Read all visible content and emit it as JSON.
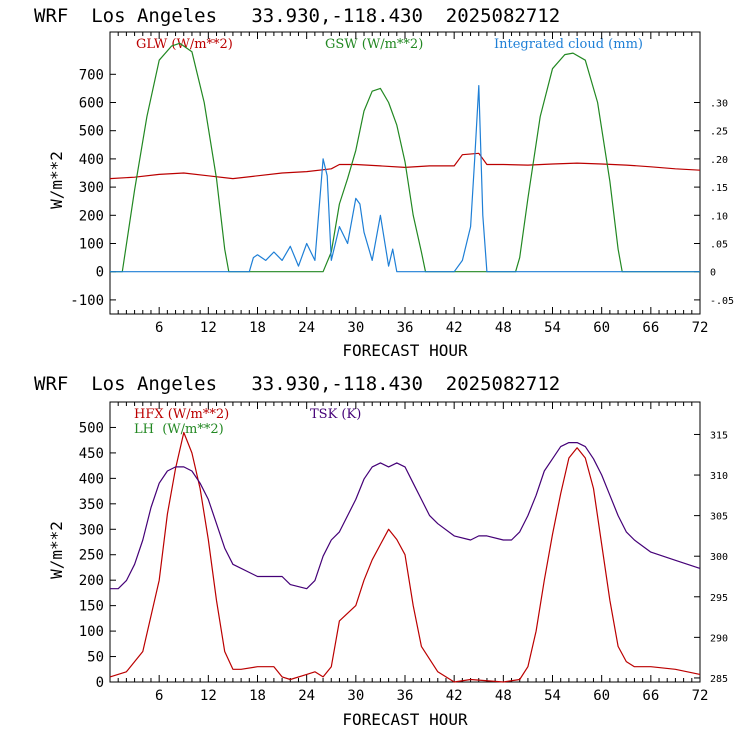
{
  "chart_data": [
    {
      "type": "line",
      "title": "WRF  Los Angeles   33.930,-118.430  2025082712",
      "xlabel": "FORECAST HOUR",
      "ylabel": "W/m**2",
      "xlim": [
        0,
        72
      ],
      "ylim": [
        -150,
        850
      ],
      "y2lim": [
        -0.075,
        0.425
      ],
      "x_ticks": [
        "6",
        "12",
        "18",
        "24",
        "30",
        "36",
        "42",
        "48",
        "54",
        "60",
        "66",
        "72"
      ],
      "y_ticks": [
        "-100",
        "0",
        "100",
        "200",
        "300",
        "400",
        "500",
        "600",
        "700"
      ],
      "y2_ticks": [
        "-.05",
        "0",
        ".05",
        ".10",
        ".15",
        ".20",
        ".25",
        ".30"
      ],
      "series": [
        {
          "name": "GLW (W/m**2)",
          "axis": "left",
          "color": "#bb0000",
          "x": [
            0,
            3,
            6,
            9,
            12,
            15,
            18,
            21,
            24,
            27,
            28,
            30,
            33,
            36,
            39,
            42,
            43,
            45,
            46,
            48,
            51,
            54,
            57,
            60,
            63,
            66,
            69,
            72
          ],
          "y": [
            330,
            335,
            345,
            350,
            340,
            330,
            340,
            350,
            355,
            365,
            380,
            380,
            375,
            370,
            375,
            375,
            415,
            420,
            380,
            380,
            378,
            382,
            385,
            382,
            378,
            372,
            365,
            360
          ]
        },
        {
          "name": "GSW (W/m**2)",
          "axis": "left",
          "color": "#228822",
          "x": [
            0,
            1.5,
            3,
            4.5,
            6,
            7.5,
            8.5,
            10,
            11.5,
            13,
            14,
            14.5,
            26,
            27,
            28,
            29,
            30,
            31,
            32,
            33,
            34,
            35,
            36,
            37,
            38,
            38.5,
            49.5,
            50,
            51,
            52.5,
            54,
            55.5,
            56.5,
            58,
            59.5,
            61,
            62,
            62.5,
            72
          ],
          "y": [
            0,
            0,
            290,
            550,
            750,
            800,
            810,
            780,
            600,
            330,
            80,
            0,
            0,
            70,
            240,
            330,
            430,
            570,
            640,
            650,
            600,
            520,
            390,
            200,
            70,
            0,
            0,
            50,
            260,
            550,
            720,
            770,
            775,
            750,
            600,
            320,
            80,
            0,
            0
          ]
        },
        {
          "name": "Integrated cloud (mm)",
          "axis": "right",
          "color": "#1e7fd6",
          "x": [
            0,
            17,
            17.5,
            18,
            19,
            20,
            21,
            22,
            23,
            24,
            25,
            26,
            26.5,
            27,
            28,
            29,
            30,
            30.5,
            31,
            32,
            33,
            34,
            34.5,
            35,
            36,
            42,
            43,
            44,
            44.5,
            45,
            45.5,
            46,
            47,
            72
          ],
          "y": [
            0,
            0,
            0.025,
            0.03,
            0.02,
            0.035,
            0.02,
            0.045,
            0.01,
            0.05,
            0.02,
            0.2,
            0.17,
            0.02,
            0.08,
            0.05,
            0.13,
            0.12,
            0.07,
            0.02,
            0.1,
            0.01,
            0.04,
            0.0,
            0,
            0,
            0.02,
            0.08,
            0.2,
            0.33,
            0.1,
            0.0,
            0,
            0
          ]
        }
      ]
    },
    {
      "type": "line",
      "title": "WRF  Los Angeles   33.930,-118.430  2025082712",
      "xlabel": "FORECAST HOUR",
      "ylabel": "W/m**2",
      "xlim": [
        0,
        72
      ],
      "ylim": [
        0,
        550
      ],
      "y2lim": [
        284.5,
        319
      ],
      "x_ticks": [
        "6",
        "12",
        "18",
        "24",
        "30",
        "36",
        "42",
        "48",
        "54",
        "60",
        "66",
        "72"
      ],
      "y_ticks": [
        "0",
        "50",
        "100",
        "150",
        "200",
        "250",
        "300",
        "350",
        "400",
        "450",
        "500"
      ],
      "y2_ticks": [
        "285",
        "290",
        "295",
        "300",
        "305",
        "310",
        "315"
      ],
      "series": [
        {
          "name": "HFX (W/m**2)",
          "axis": "left",
          "color": "#bb0000",
          "x": [
            0,
            2,
            4,
            6,
            7,
            8,
            9,
            10,
            11,
            12,
            13,
            14,
            15,
            16,
            18,
            20,
            21,
            22,
            24,
            25,
            26,
            27,
            28,
            30,
            31,
            32,
            33,
            34,
            35,
            36,
            37,
            38,
            40,
            42,
            44,
            48,
            50,
            51,
            52,
            53,
            54,
            55,
            56,
            57,
            58,
            59,
            60,
            61,
            62,
            63,
            64,
            66,
            69,
            72
          ],
          "y": [
            10,
            20,
            60,
            200,
            330,
            420,
            490,
            450,
            380,
            280,
            160,
            60,
            25,
            25,
            30,
            30,
            10,
            5,
            15,
            20,
            10,
            30,
            120,
            150,
            200,
            240,
            270,
            300,
            280,
            250,
            150,
            70,
            20,
            0,
            5,
            0,
            5,
            30,
            100,
            200,
            290,
            370,
            440,
            460,
            440,
            380,
            270,
            160,
            70,
            40,
            30,
            30,
            25,
            15
          ]
        },
        {
          "name": "LH  (W/m**2)",
          "axis": "left",
          "color": "#228822",
          "x": [],
          "y": []
        },
        {
          "name": "TSK (K)",
          "axis": "right",
          "color": "#440077",
          "x": [
            0,
            1,
            2,
            3,
            4,
            5,
            6,
            7,
            8,
            9,
            10,
            11,
            12,
            13,
            14,
            15,
            18,
            21,
            22,
            24,
            25,
            26,
            27,
            28,
            29,
            30,
            31,
            32,
            33,
            34,
            35,
            36,
            37,
            38,
            39,
            40,
            42,
            44,
            45,
            46,
            48,
            49,
            50,
            51,
            52,
            53,
            54,
            55,
            56,
            57,
            58,
            59,
            60,
            61,
            62,
            63,
            64,
            66,
            69,
            72
          ],
          "y": [
            296,
            296,
            297,
            299,
            302,
            306,
            309,
            310.5,
            311,
            311,
            310.5,
            309,
            307,
            304,
            301,
            299,
            297.5,
            297.5,
            296.5,
            296,
            297,
            300,
            302,
            303,
            305,
            307,
            309.5,
            311,
            311.5,
            311,
            311.5,
            311,
            309,
            307,
            305,
            304,
            302.5,
            302,
            302.5,
            302.5,
            302,
            302,
            303,
            305,
            307.5,
            310.5,
            312,
            313.5,
            314,
            314,
            313.5,
            312,
            310,
            307.5,
            305,
            303,
            302,
            300.5,
            299.5,
            298.5
          ]
        }
      ]
    }
  ]
}
